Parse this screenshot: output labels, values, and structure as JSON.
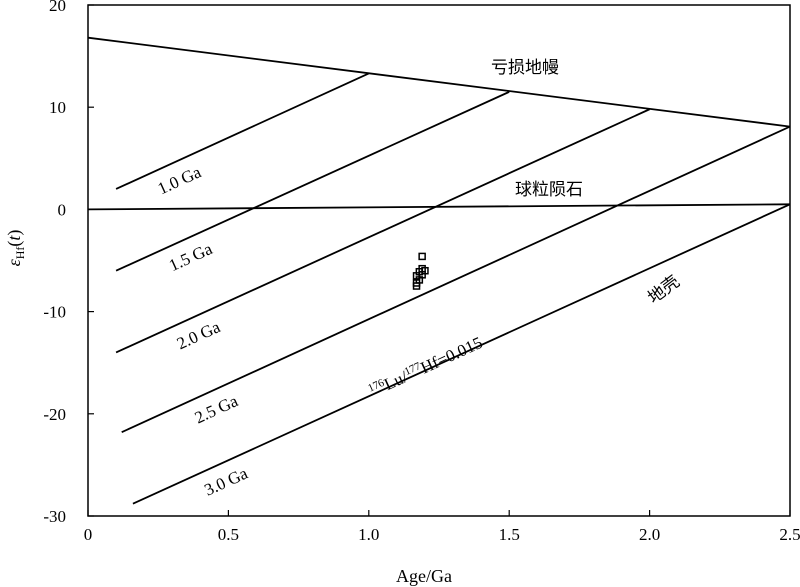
{
  "chart_data": {
    "type": "scatter",
    "xlabel": "Age/Ga",
    "ylabel": "εHf(t)",
    "xlim": [
      0,
      2.5
    ],
    "ylim": [
      -30,
      20
    ],
    "x_ticks": [
      "0",
      "0.5",
      "1.0",
      "1.5",
      "2.0",
      "2.5"
    ],
    "y_ticks": [
      "20",
      "10",
      "0",
      "-10",
      "-20",
      "-30"
    ],
    "grid": false,
    "reference_lines": [
      {
        "label": "亏损地幔",
        "x": [
          0,
          2.5
        ],
        "y": [
          16.8,
          8.1
        ]
      },
      {
        "label": "球粒陨石",
        "x": [
          0,
          2.5
        ],
        "y": [
          0,
          0.5
        ]
      },
      {
        "label": "1.0 Ga",
        "x": [
          0.1,
          1.0
        ],
        "y": [
          2.0,
          13.3
        ]
      },
      {
        "label": "1.5 Ga",
        "x": [
          0.1,
          1.5
        ],
        "y": [
          -6.0,
          11.5
        ]
      },
      {
        "label": "2.0 Ga",
        "x": [
          0.1,
          2.0
        ],
        "y": [
          -14.0,
          9.8
        ]
      },
      {
        "label": "2.5 Ga",
        "x": [
          0.12,
          2.5
        ],
        "y": [
          -21.8,
          8.1
        ]
      },
      {
        "label": "3.0 Ga",
        "x": [
          0.16,
          2.5
        ],
        "y": [
          -28.8,
          0.5
        ]
      }
    ],
    "crust_label": "地壳",
    "ratio_label": {
      "sup1": "176",
      "mid": "Lu/",
      "sup2": "177",
      "end": "Hf=0.015"
    },
    "points": [
      {
        "x": 1.19,
        "y": -4.6
      },
      {
        "x": 1.19,
        "y": -5.8
      },
      {
        "x": 1.18,
        "y": -6.1
      },
      {
        "x": 1.2,
        "y": -6.0
      },
      {
        "x": 1.19,
        "y": -6.4
      },
      {
        "x": 1.17,
        "y": -6.5
      },
      {
        "x": 1.18,
        "y": -6.9
      },
      {
        "x": 1.17,
        "y": -7.2
      },
      {
        "x": 1.17,
        "y": -7.5
      }
    ]
  }
}
